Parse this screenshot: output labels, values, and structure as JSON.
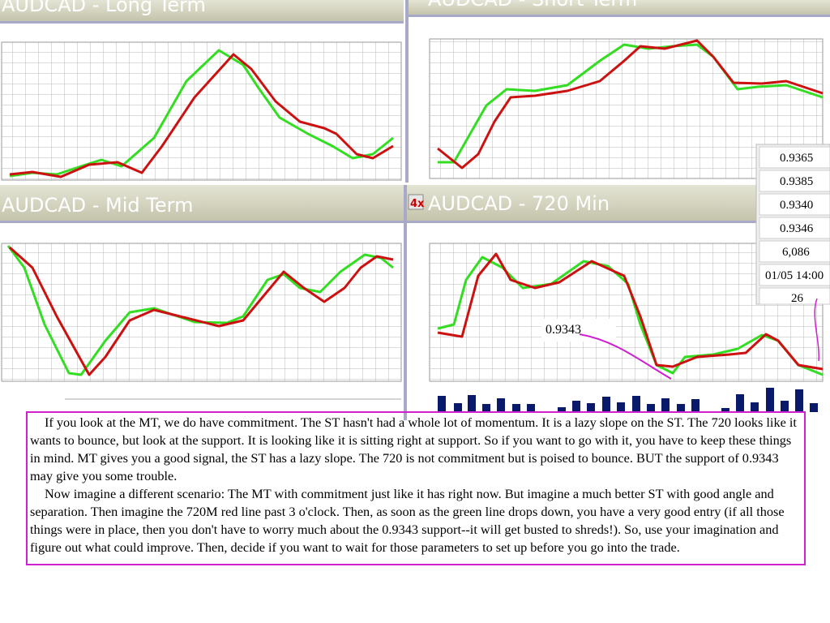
{
  "panels": [
    {
      "title": "AUDCAD - Long Term"
    },
    {
      "title": "AUDCAD - Short Term"
    },
    {
      "title": "AUDCAD - Mid Term"
    },
    {
      "title": "AUDCAD - 720 Min"
    }
  ],
  "quote_box": [
    "0.9365",
    "0.9385",
    "0.9340",
    "0.9346",
    "6,086",
    "01/05 14:00",
    "26"
  ],
  "annotation": "0.9343",
  "note": {
    "paragraphs": [
      "If you look at the MT, we do have commitment.  The ST hasn't had a whole lot of momentum.  It is a lazy slope on the ST.  The 720 looks like it wants to bounce, but look at the support.  It is looking like it is sitting right at support.  So if you want to go with it, you have to keep these things in mind.  MT gives you a good signal, the ST has a lazy slope.  The 720 is not commitment but is poised to bounce.  BUT the support of 0.9343 may give you some trouble.",
      "Now imagine a different scenario:  The MT with commitment just like it has right now.  But imagine a much better ST with good angle and separation.  Then imagine the 720M red line past 3 o'clock.  Then, as soon as the green line drops down, you have a very good entry (if all those things were in place, then you don't have to worry much about the 0.9343 support--it will get busted to shreds!).  So, use your imagination and figure out what could improve.  Then, decide if you want to wait for those parameters to set up before you go into the trade."
    ]
  }
}
